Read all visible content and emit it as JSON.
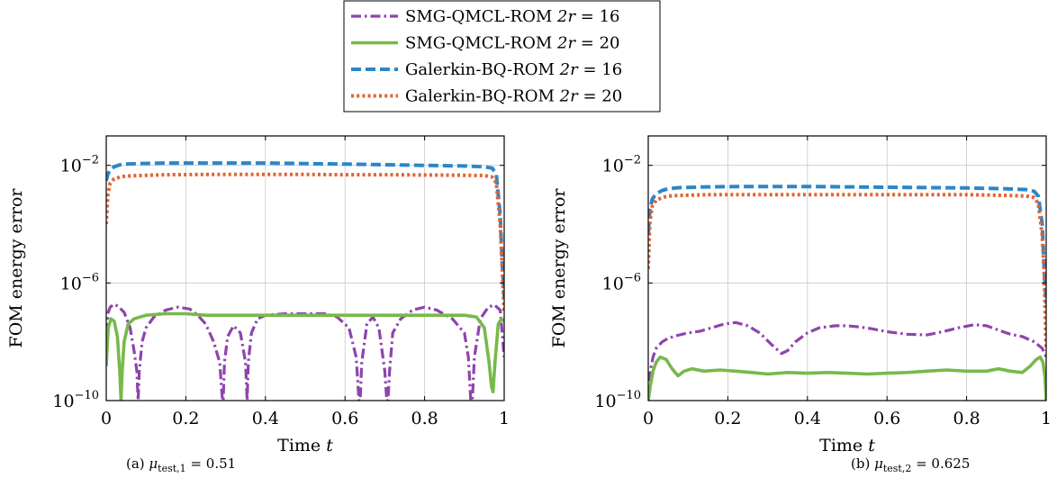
{
  "legend": {
    "placement": "top-center",
    "entries": [
      {
        "label_prefix": "SMG-QMCL-ROM ",
        "label_var": "2r",
        "label_suffix": " = 16",
        "color": "#8e44ad",
        "style": "dashdot"
      },
      {
        "label_prefix": "SMG-QMCL-ROM ",
        "label_var": "2r",
        "label_suffix": " = 20",
        "color": "#77b94a",
        "style": "solid"
      },
      {
        "label_prefix": "Galerkin-BQ-ROM ",
        "label_var": "2r",
        "label_suffix": " = 16",
        "color": "#2b86c8",
        "style": "dashed"
      },
      {
        "label_prefix": "Galerkin-BQ-ROM ",
        "label_var": "2r",
        "label_suffix": " = 20",
        "color": "#e4622f",
        "style": "dotted"
      }
    ]
  },
  "chart_data": [
    {
      "type": "line",
      "caption_prefix": "(a) ",
      "caption_mu": "μ",
      "caption_sub": "test,1",
      "caption_value": " = 0.51",
      "xlabel": "Time ",
      "xlabel_var": "t",
      "ylabel": "FOM energy error",
      "xlim": [
        0,
        1
      ],
      "ylim": [
        1e-10,
        0.1
      ],
      "yscale": "log",
      "grid": true,
      "x_ticks": [
        "0",
        "0.2",
        "0.4",
        "0.6",
        "0.8",
        "1"
      ],
      "y_ticks": [
        {
          "base": "10",
          "exp": "−2"
        },
        {
          "base": "10",
          "exp": "−6"
        },
        {
          "base": "10",
          "exp": "−10"
        }
      ],
      "series": [
        {
          "name": "SMG-QMCL-ROM 2r = 16",
          "color": "#8e44ad",
          "style": "dashdot",
          "x": [
            0,
            0.005,
            0.01,
            0.02,
            0.03,
            0.045,
            0.06,
            0.07,
            0.077,
            0.08,
            0.083,
            0.09,
            0.1,
            0.12,
            0.15,
            0.18,
            0.21,
            0.23,
            0.25,
            0.27,
            0.285,
            0.292,
            0.294,
            0.297,
            0.305,
            0.32,
            0.337,
            0.35,
            0.354,
            0.357,
            0.365,
            0.38,
            0.4,
            0.45,
            0.5,
            0.55,
            0.58,
            0.61,
            0.628,
            0.635,
            0.638,
            0.642,
            0.655,
            0.67,
            0.685,
            0.7,
            0.705,
            0.708,
            0.712,
            0.72,
            0.74,
            0.77,
            0.8,
            0.83,
            0.87,
            0.9,
            0.91,
            0.916,
            0.92,
            0.925,
            0.94,
            0.96,
            0.975,
            0.99,
            1.0
          ],
          "y": [
            2e-08,
            1e-07,
            1.5e-07,
            1.9e-07,
            1.6e-07,
            1e-07,
            3e-08,
            5e-09,
            1e-09,
            1e-10,
            1e-09,
            1e-08,
            3e-08,
            7e-08,
            1.2e-07,
            1.5e-07,
            1.3e-07,
            8e-08,
            4e-08,
            1e-08,
            2e-09,
            1e-10,
            1e-10,
            2e-09,
            1.5e-08,
            3.5e-08,
            2e-08,
            2e-09,
            1e-10,
            2e-09,
            2e-08,
            6e-08,
            8e-08,
            9e-08,
            9e-08,
            9e-08,
            7e-08,
            3e-08,
            3e-09,
            1e-10,
            1e-10,
            2e-09,
            4e-08,
            7e-08,
            3e-08,
            1e-09,
            1e-10,
            1e-10,
            1e-09,
            2e-08,
            6e-08,
            1.2e-07,
            1.5e-07,
            1.2e-07,
            6e-08,
            2e-08,
            3e-09,
            1e-10,
            1e-10,
            3e-09,
            6e-08,
            1.5e-07,
            1.8e-07,
            1.2e-07,
            3e-09
          ]
        },
        {
          "name": "SMG-QMCL-ROM 2r = 20",
          "color": "#77b94a",
          "style": "solid",
          "x": [
            0,
            0.005,
            0.012,
            0.02,
            0.028,
            0.034,
            0.037,
            0.04,
            0.045,
            0.055,
            0.07,
            0.1,
            0.15,
            0.2,
            0.25,
            0.3,
            0.4,
            0.5,
            0.6,
            0.7,
            0.8,
            0.9,
            0.93,
            0.95,
            0.962,
            0.968,
            0.972,
            0.977,
            0.985,
            0.993,
            1.0
          ],
          "y": [
            1.5e-09,
            3e-08,
            6e-08,
            5e-08,
            1.5e-08,
            1e-09,
            1e-10,
            1e-09,
            1e-08,
            4e-08,
            6e-08,
            8e-08,
            9e-08,
            9e-08,
            8e-08,
            8e-08,
            8e-08,
            8e-08,
            8e-08,
            8e-08,
            8e-08,
            8e-08,
            7e-08,
            3e-08,
            2e-09,
            3e-10,
            2e-10,
            2e-09,
            4e-08,
            6e-08,
            5e-08
          ]
        },
        {
          "name": "Galerkin-BQ-ROM 2r = 16",
          "color": "#2b86c8",
          "style": "dashed",
          "x": [
            0,
            0.004,
            0.01,
            0.02,
            0.035,
            0.05,
            0.08,
            0.15,
            0.25,
            0.4,
            0.5,
            0.6,
            0.7,
            0.8,
            0.9,
            0.95,
            0.97,
            0.98,
            0.99,
            0.995,
            1.0
          ],
          "y": [
            0.003,
            0.005,
            0.007,
            0.009,
            0.0105,
            0.011,
            0.0115,
            0.012,
            0.012,
            0.012,
            0.0115,
            0.011,
            0.0105,
            0.01,
            0.0095,
            0.009,
            0.008,
            0.005,
            0.0002,
            5e-06,
            3e-07
          ]
        },
        {
          "name": "Galerkin-BQ-ROM 2r = 20",
          "color": "#e4622f",
          "style": "dotted",
          "x": [
            0,
            0.004,
            0.01,
            0.02,
            0.035,
            0.05,
            0.08,
            0.15,
            0.25,
            0.4,
            0.5,
            0.6,
            0.7,
            0.8,
            0.9,
            0.95,
            0.97,
            0.98,
            0.99,
            0.995,
            1.0
          ],
          "y": [
            0.0001,
            0.001,
            0.0025,
            0.0035,
            0.004,
            0.0043,
            0.0045,
            0.0048,
            0.0049,
            0.0049,
            0.0049,
            0.0048,
            0.0048,
            0.0047,
            0.0046,
            0.0045,
            0.004,
            0.0025,
            0.0001,
            3e-06,
            1e-07
          ]
        }
      ]
    },
    {
      "type": "line",
      "caption_prefix": "(b) ",
      "caption_mu": "μ",
      "caption_sub": "test,2",
      "caption_value": " = 0.625",
      "xlabel": "Time ",
      "xlabel_var": "t",
      "ylabel": "FOM energy error",
      "xlim": [
        0,
        1
      ],
      "ylim": [
        1e-10,
        0.1
      ],
      "yscale": "log",
      "grid": true,
      "x_ticks": [
        "0",
        "0.2",
        "0.4",
        "0.6",
        "0.8",
        "1"
      ],
      "y_ticks": [
        {
          "base": "10",
          "exp": "−2"
        },
        {
          "base": "10",
          "exp": "−6"
        },
        {
          "base": "10",
          "exp": "−10"
        }
      ],
      "series": [
        {
          "name": "SMG-QMCL-ROM 2r = 16",
          "color": "#8e44ad",
          "style": "dashdot",
          "x": [
            0,
            0.005,
            0.012,
            0.02,
            0.035,
            0.05,
            0.07,
            0.1,
            0.13,
            0.16,
            0.19,
            0.22,
            0.25,
            0.28,
            0.31,
            0.335,
            0.35,
            0.37,
            0.4,
            0.43,
            0.47,
            0.5,
            0.53,
            0.56,
            0.6,
            0.65,
            0.7,
            0.74,
            0.78,
            0.82,
            0.85,
            0.88,
            0.91,
            0.94,
            0.97,
            0.99,
            1.0
          ],
          "y": [
            1e-10,
            1e-09,
            3e-09,
            6e-09,
            1e-08,
            1.3e-08,
            1.6e-08,
            2e-08,
            2.3e-08,
            3e-08,
            4e-08,
            4.5e-08,
            3.5e-08,
            2e-08,
            8e-09,
            4e-09,
            5e-09,
            1e-08,
            2e-08,
            3e-08,
            3.5e-08,
            3.5e-08,
            3.2e-08,
            2.8e-08,
            2.2e-08,
            1.8e-08,
            1.7e-08,
            2.2e-08,
            3e-08,
            3.8e-08,
            3.5e-08,
            2.5e-08,
            1.8e-08,
            1.5e-08,
            1e-08,
            6e-09,
            3e-09
          ]
        },
        {
          "name": "SMG-QMCL-ROM 2r = 20",
          "color": "#77b94a",
          "style": "solid",
          "x": [
            0,
            0.005,
            0.012,
            0.02,
            0.03,
            0.045,
            0.06,
            0.075,
            0.09,
            0.11,
            0.14,
            0.18,
            0.22,
            0.26,
            0.3,
            0.35,
            0.4,
            0.45,
            0.5,
            0.55,
            0.6,
            0.65,
            0.7,
            0.75,
            0.8,
            0.85,
            0.88,
            0.91,
            0.94,
            0.96,
            0.975,
            0.985,
            0.992,
            0.997,
            1.0
          ],
          "y": [
            1e-10,
            3e-10,
            1e-09,
            2e-09,
            3e-09,
            2.5e-09,
            1.2e-09,
            7e-10,
            1e-09,
            1.2e-09,
            1e-09,
            1.1e-09,
            1e-09,
            9e-10,
            8e-10,
            9e-10,
            8.5e-10,
            9e-10,
            8.5e-10,
            8e-10,
            8.5e-10,
            9e-10,
            1e-09,
            1.1e-09,
            1e-09,
            1e-09,
            1.2e-09,
            1e-09,
            9e-10,
            1.5e-09,
            2.5e-09,
            3e-09,
            2e-09,
            6e-10,
            1e-10
          ]
        },
        {
          "name": "Galerkin-BQ-ROM 2r = 16",
          "color": "#2b86c8",
          "style": "dashed",
          "x": [
            0,
            0.004,
            0.01,
            0.02,
            0.035,
            0.05,
            0.08,
            0.15,
            0.25,
            0.4,
            0.5,
            0.6,
            0.7,
            0.8,
            0.9,
            0.95,
            0.97,
            0.98,
            0.99,
            0.995,
            1.0
          ],
          "y": [
            5e-05,
            0.0003,
            0.0007,
            0.0011,
            0.0014,
            0.0016,
            0.00175,
            0.00185,
            0.0019,
            0.0019,
            0.00185,
            0.0018,
            0.00175,
            0.0017,
            0.0016,
            0.0015,
            0.0013,
            0.0009,
            0.0001,
            3e-06,
            2e-07
          ]
        },
        {
          "name": "Galerkin-BQ-ROM 2r = 20",
          "color": "#e4622f",
          "style": "dotted",
          "x": [
            0,
            0.004,
            0.01,
            0.02,
            0.035,
            0.05,
            0.08,
            0.15,
            0.25,
            0.4,
            0.5,
            0.6,
            0.7,
            0.8,
            0.9,
            0.95,
            0.97,
            0.98,
            0.99,
            0.995,
            1.0
          ],
          "y": [
            3e-06,
            0.00012,
            0.0004,
            0.00065,
            0.0008,
            0.0009,
            0.00095,
            0.001,
            0.001,
            0.001,
            0.001,
            0.001,
            0.001,
            0.001,
            0.00095,
            0.0009,
            0.0008,
            0.0005,
            4e-05,
            2e-06,
            5e-09
          ]
        }
      ]
    }
  ]
}
